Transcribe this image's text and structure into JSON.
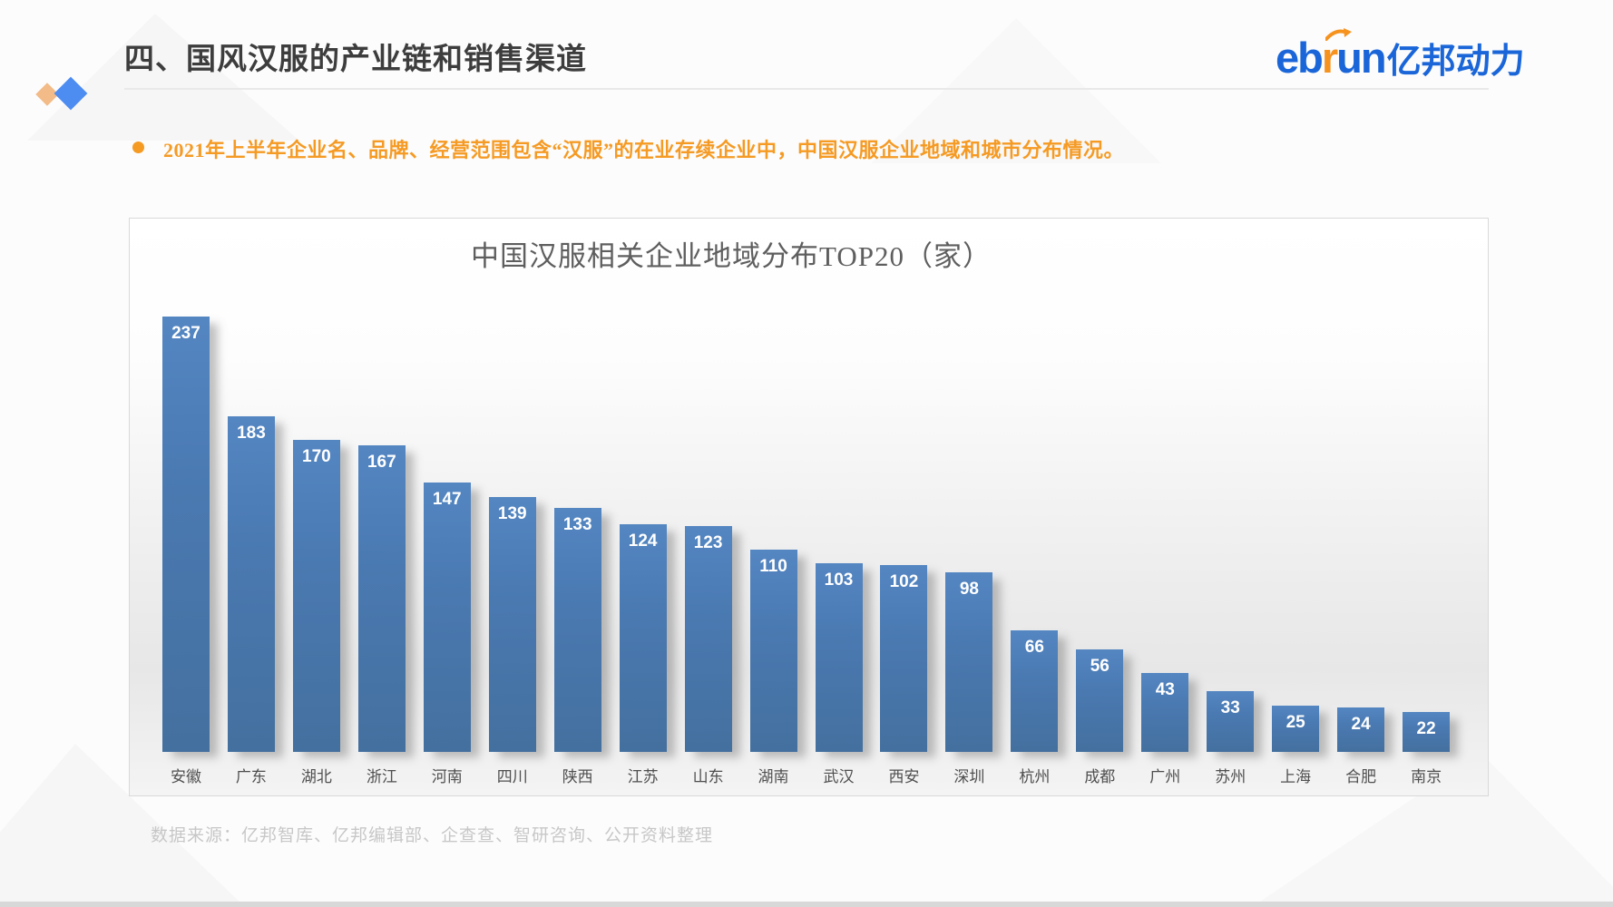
{
  "slide": {
    "title": "四、国风汉服的产业链和销售渠道",
    "bullet": "2021年上半年企业名、品牌、经营范围包含“汉服”的在业存续企业中，中国汉服企业地域和城市分布情况。",
    "source": "数据来源：亿邦智库、亿邦编辑部、企查查、智研咨询、公开资料整理"
  },
  "logo": {
    "part_eb": "eb",
    "part_r": "r",
    "part_un": "un",
    "part_cn": "亿邦动力",
    "blue": "#1a66d9",
    "orange": "#f6921e"
  },
  "colors": {
    "accent_orange": "#f59a23",
    "bar_blue": "#4a79b1",
    "title_gray": "#5e5e5e",
    "diamond_orange": "#f2bb87",
    "diamond_blue": "#4d8cf1"
  },
  "chart_data": {
    "type": "bar",
    "title": "中国汉服相关企业地域分布TOP20（家）",
    "categories": [
      "安徽",
      "广东",
      "湖北",
      "浙江",
      "河南",
      "四川",
      "陕西",
      "江苏",
      "山东",
      "湖南",
      "武汉",
      "西安",
      "深圳",
      "杭州",
      "成都",
      "广州",
      "苏州",
      "上海",
      "合肥",
      "南京"
    ],
    "values": [
      237,
      183,
      170,
      167,
      147,
      139,
      133,
      124,
      123,
      110,
      103,
      102,
      98,
      66,
      56,
      43,
      33,
      25,
      24,
      22
    ],
    "xlabel": "",
    "ylabel": "",
    "ylim": [
      0,
      250
    ],
    "grid": false,
    "legend": "none",
    "data_labels": "inside-top",
    "bar_color": "#4a79b1"
  }
}
